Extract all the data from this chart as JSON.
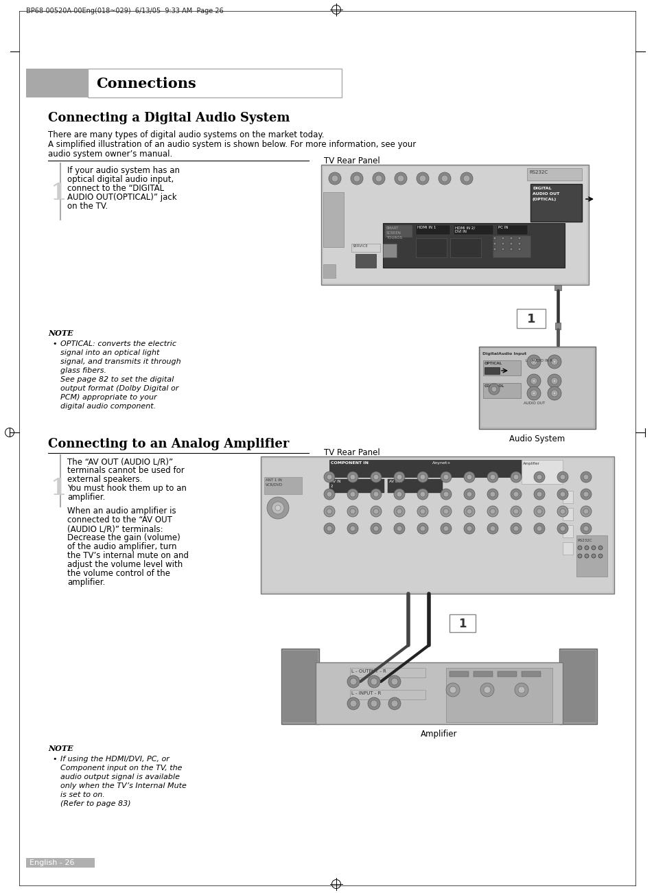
{
  "page_header": "BP68-00520A-00Eng(018~029)  6/13/05  9:33 AM  Page 26",
  "section_title": "Connections",
  "section1_title": "Connecting a Digital Audio System",
  "section1_intro1": "There are many types of digital audio systems on the market today.",
  "section1_intro2": "A simplified illustration of an audio system is shown below. For more information, see your",
  "section1_intro3": "audio system owner’s manual.",
  "step1_number": "1",
  "step1_text1": "If your audio system has an",
  "step1_text2": "optical digital audio input,",
  "step1_text3": "connect to the “DIGITAL",
  "step1_text4": "AUDIO OUT(OPTICAL)” jack",
  "step1_text5": "on the TV.",
  "tv_rear_panel_label1": "TV Rear Panel",
  "audio_system_label": "Audio System",
  "note1_title": "NOTE",
  "note1_bullet1_line1": "OPTICAL: converts the electric",
  "note1_bullet1_line2": "signal into an optical light",
  "note1_bullet1_line3": "signal, and transmits it through",
  "note1_bullet1_line4": "glass fibers.",
  "note1_bullet1_line5": "See page 82 to set the digital",
  "note1_bullet1_line6": "output format (Dolby Digital or",
  "note1_bullet1_line7": "PCM) appropriate to your",
  "note1_bullet1_line8": "digital audio component.",
  "section2_title": "Connecting to an Analog Amplifier",
  "step2_number": "1",
  "step2_text1": "The “AV OUT (AUDIO L/R)”",
  "step2_text2": "terminals cannot be used for",
  "step2_text3": "external speakers.",
  "step2_text4": "You must hook them up to an",
  "step2_text5": "amplifier.",
  "step2_text7": "When an audio amplifier is",
  "step2_text8": "connected to the “AV OUT",
  "step2_text9": "(AUDIO L/R)” terminals:",
  "step2_text10": "Decrease the gain (volume)",
  "step2_text11": "of the audio amplifier, turn",
  "step2_text12": "the TV’s internal mute on and",
  "step2_text13": "adjust the volume level with",
  "step2_text14": "the volume control of the",
  "step2_text15": "amplifier.",
  "tv_rear_panel_label2": "TV Rear Panel",
  "amplifier_label": "Amplifier",
  "note2_title": "NOTE",
  "note2_bullet1_line1": "If using the HDMI/DVI, PC, or",
  "note2_bullet1_line2": "Component input on the TV, the",
  "note2_bullet1_line3": "audio output signal is available",
  "note2_bullet1_line4": "only when the TV’s Internal Mute",
  "note2_bullet1_line5": "is set to on.",
  "note2_bullet1_line6": "(Refer to page 83)",
  "footer_text": "English - 26",
  "bg_color": "#ffffff",
  "section_bar_color": "#a8a8a8",
  "header_font_size": 7,
  "section_font_size": 15,
  "heading2_font_size": 13,
  "body_font_size": 8.5,
  "note_font_size": 8,
  "footer_font_size": 8,
  "panel_bg": "#c8c8c8",
  "panel_dark": "#a0a0a0",
  "panel_border": "#888888"
}
